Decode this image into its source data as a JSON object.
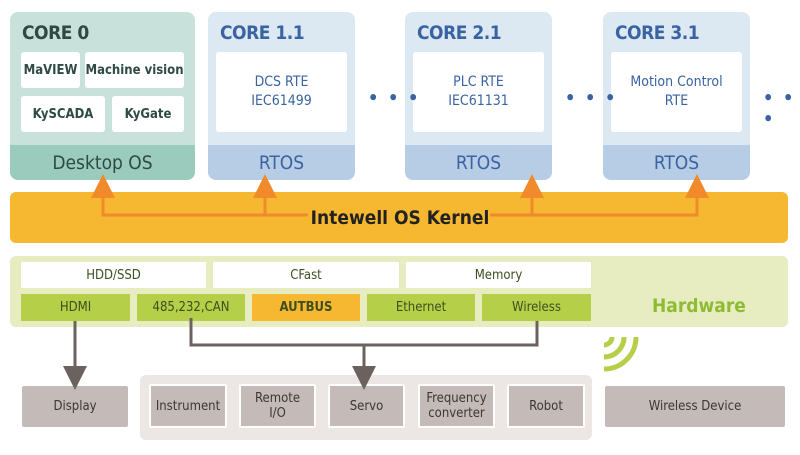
{
  "cores": [
    {
      "title": "CORE 0",
      "os": "Desktop OS",
      "apps": [
        "MaVIEW",
        "Machine vision",
        "KySCADA",
        "KyGate"
      ]
    },
    {
      "title": "CORE 1.1",
      "os": "RTOS",
      "rte_line1": "DCS RTE",
      "rte_line2": "IEC61499"
    },
    {
      "title": "CORE 2.1",
      "os": "RTOS",
      "rte_line1": "PLC RTE",
      "rte_line2": "IEC61131"
    },
    {
      "title": "CORE 3.1",
      "os": "RTOS",
      "rte_line1": "Motion Control",
      "rte_line2": "RTE"
    }
  ],
  "ellipsis": "• • •",
  "kernel": {
    "label": "Intewell OS Kernel",
    "color": "#f6b731",
    "arrow_color": "#f08a2a"
  },
  "hardware": {
    "label": "Hardware",
    "storage": [
      "HDD/SSD",
      "CFast",
      "Memory"
    ],
    "interfaces": [
      "HDMI",
      "485,232,CAN",
      "AUTBUS",
      "Ethernet",
      "Wireless"
    ],
    "highlight_color": "#f6b731",
    "interface_color": "#b6cf48"
  },
  "devices": {
    "display": "Display",
    "group": [
      {
        "line1": "Instrument",
        "line2": ""
      },
      {
        "line1": "Remote",
        "line2": "I/O"
      },
      {
        "line1": "Servo",
        "line2": ""
      },
      {
        "line1": "Frequency",
        "line2": "converter"
      },
      {
        "line1": "Robot",
        "line2": ""
      }
    ],
    "wireless": "Wireless Device"
  }
}
